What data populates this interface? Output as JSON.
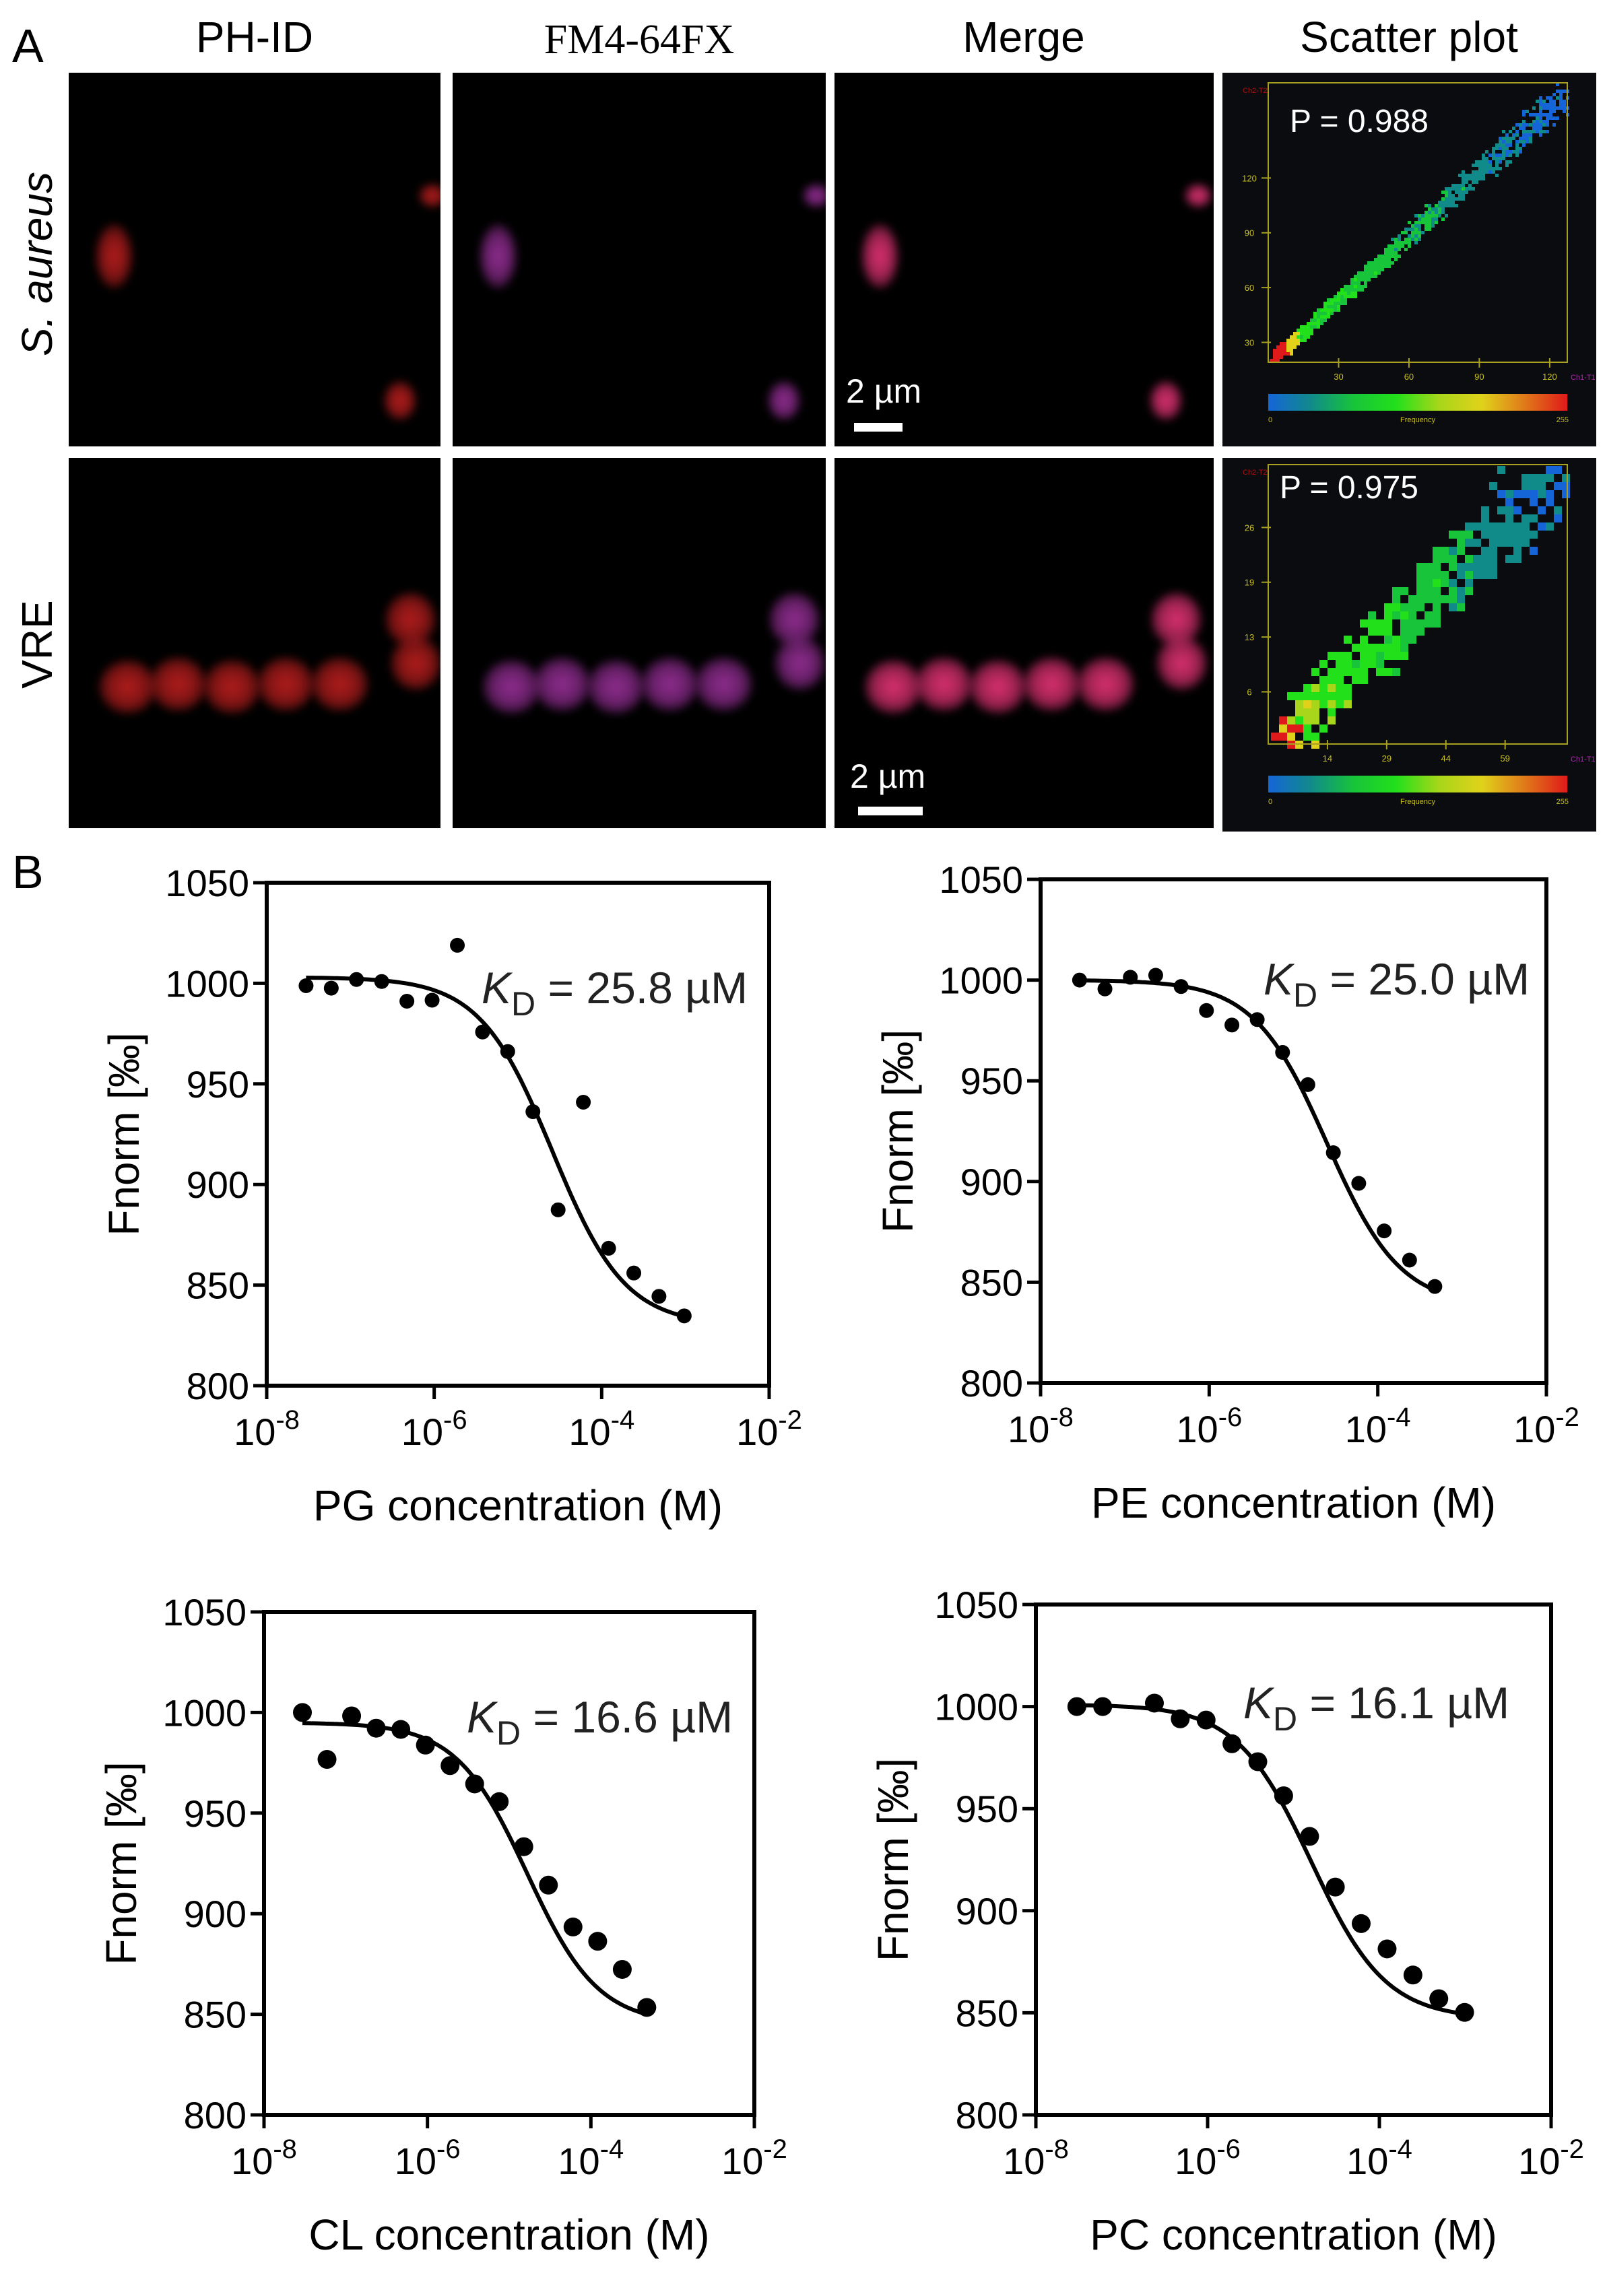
{
  "panel_a": {
    "letter": "A",
    "columns": [
      "PH-ID",
      "FM4-64FX",
      "Merge",
      "Scatter plot"
    ],
    "rows": [
      {
        "label_italic": "S. aureus",
        "scale_bar": "2 µm",
        "scatter": {
          "p_label": "P = 0.988",
          "y_axis": "Ch2-T2",
          "x_axis": "Ch1-T1",
          "yticks": [
            "120",
            "90",
            "60",
            "30"
          ],
          "xticks": [
            "30",
            "60",
            "90",
            "120"
          ],
          "colorbar": {
            "min": "0",
            "label": "Frequency",
            "max": "255"
          }
        }
      },
      {
        "label": "VRE",
        "scale_bar": "2 µm",
        "scatter": {
          "p_label": "P = 0.975",
          "y_axis": "Ch2-T2",
          "x_axis": "Ch1-T1",
          "yticks": [
            "26",
            "19",
            "13",
            "6"
          ],
          "xticks": [
            "14",
            "29",
            "44",
            "59"
          ],
          "colorbar": {
            "min": "0",
            "label": "Frequency",
            "max": "255"
          }
        }
      }
    ],
    "colors": {
      "ph_id": "#b01c1c",
      "fm4": "#8e2c8e",
      "merge": "#d8306e"
    }
  },
  "panel_b": {
    "letter": "B"
  },
  "chart_data": [
    {
      "type": "scatter",
      "xlabel": "PG concentration (M)",
      "ylabel": "Fnorm [‰]",
      "xscale": "log",
      "xlim": [
        1e-08,
        0.01
      ],
      "ylim": [
        800,
        1050
      ],
      "yticks": [
        "800",
        "850",
        "900",
        "950",
        "1000",
        "1050"
      ],
      "xticks": [
        {
          "base": "10",
          "exp": "-8"
        },
        {
          "base": "10",
          "exp": "-6"
        },
        {
          "base": "10",
          "exp": "-4"
        },
        {
          "base": "10",
          "exp": "-2"
        }
      ],
      "annotation": {
        "symbol": "K",
        "sub": "D",
        "text": " = 25.8 µM"
      },
      "fit": {
        "kd": 2.58e-05,
        "top": 1003,
        "bottom": 830
      },
      "x": [
        2.95e-08,
        5.9e-08,
        1.18e-07,
        2.36e-07,
        4.72e-07,
        9.44e-07,
        1.89e-06,
        3.78e-06,
        7.55e-06,
        1.51e-05,
        3.02e-05,
        6.04e-05,
        0.000121,
        0.000242,
        0.000483,
        0.000967
      ],
      "y": [
        998.8,
        997.6,
        1001.9,
        1000.9,
        991.1,
        991.6,
        1018.9,
        975.8,
        966.1,
        936.2,
        887.4,
        940.9,
        868.3,
        856.0,
        844.4,
        834.7
      ]
    },
    {
      "type": "scatter",
      "xlabel": "PE concentration (M)",
      "ylabel": "Fnorm [‰]",
      "xscale": "log",
      "xlim": [
        1e-08,
        0.01
      ],
      "ylim": [
        800,
        1050
      ],
      "yticks": [
        "800",
        "850",
        "900",
        "950",
        "1000",
        "1050"
      ],
      "xticks": [
        {
          "base": "10",
          "exp": "-8"
        },
        {
          "base": "10",
          "exp": "-6"
        },
        {
          "base": "10",
          "exp": "-4"
        },
        {
          "base": "10",
          "exp": "-2"
        }
      ],
      "annotation": {
        "symbol": "K",
        "sub": "D",
        "text": " = 25.0 µM"
      },
      "fit": {
        "kd": 2.5e-05,
        "top": 1000,
        "bottom": 838
      },
      "x": [
        2.9e-08,
        5.8e-08,
        1.16e-07,
        2.32e-07,
        4.64e-07,
        9.28e-07,
        1.86e-06,
        3.71e-06,
        7.42e-06,
        1.48e-05,
        2.97e-05,
        5.94e-05,
        0.000119,
        0.000238,
        0.000475
      ],
      "y": [
        1000,
        995.6,
        1001.4,
        1002.4,
        996.8,
        984.9,
        977.7,
        980.4,
        964.1,
        948.1,
        914.3,
        899.1,
        875.5,
        861.0,
        847.9
      ]
    },
    {
      "type": "scatter",
      "xlabel": "CL concentration (M)",
      "ylabel": "Fnorm [‰]",
      "xscale": "log",
      "xlim": [
        1e-08,
        0.01
      ],
      "ylim": [
        800,
        1050
      ],
      "yticks": [
        "800",
        "850",
        "900",
        "950",
        "1000",
        "1050"
      ],
      "xticks": [
        {
          "base": "10",
          "exp": "-8"
        },
        {
          "base": "10",
          "exp": "-6"
        },
        {
          "base": "10",
          "exp": "-4"
        },
        {
          "base": "10",
          "exp": "-2"
        }
      ],
      "annotation": {
        "symbol": "K",
        "sub": "D",
        "text": " = 16.6 µM"
      },
      "fit": {
        "kd": 1.66e-05,
        "top": 995,
        "bottom": 845
      },
      "x": [
        2.95e-08,
        5.9e-08,
        1.18e-07,
        2.36e-07,
        4.72e-07,
        9.44e-07,
        1.89e-06,
        3.78e-06,
        7.55e-06,
        1.51e-05,
        3.02e-05,
        6.04e-05,
        0.000121,
        0.000242,
        0.000483
      ],
      "y": [
        1000,
        976.7,
        998.3,
        992.2,
        991.6,
        983.8,
        973.6,
        964.5,
        955.7,
        933.3,
        914.2,
        893.4,
        886.3,
        872.3,
        853.4
      ]
    },
    {
      "type": "scatter",
      "xlabel": "PC concentration (M)",
      "ylabel": "Fnorm [‰]",
      "xscale": "log",
      "xlim": [
        1e-08,
        0.01
      ],
      "ylim": [
        800,
        1050
      ],
      "yticks": [
        "800",
        "850",
        "900",
        "950",
        "1000",
        "1050"
      ],
      "xticks": [
        {
          "base": "10",
          "exp": "-8"
        },
        {
          "base": "10",
          "exp": "-6"
        },
        {
          "base": "10",
          "exp": "-4"
        },
        {
          "base": "10",
          "exp": "-2"
        }
      ],
      "annotation": {
        "symbol": "K",
        "sub": "D",
        "text": " = 16.1 µM"
      },
      "fit": {
        "kd": 1.61e-05,
        "top": 1001,
        "bottom": 847
      },
      "x": [
        3e-08,
        6e-08,
        2.4e-07,
        4.8e-07,
        9.6e-07,
        1.92e-06,
        3.84e-06,
        7.68e-06,
        1.54e-05,
        3.07e-05,
        6.14e-05,
        0.000123,
        0.000246,
        0.000492,
        0.000983
      ],
      "y": [
        1000,
        1000,
        1001.7,
        994,
        993.4,
        981.8,
        973,
        956.3,
        936.4,
        911.6,
        893.7,
        881.3,
        868.5,
        856.9,
        850.2
      ]
    }
  ]
}
